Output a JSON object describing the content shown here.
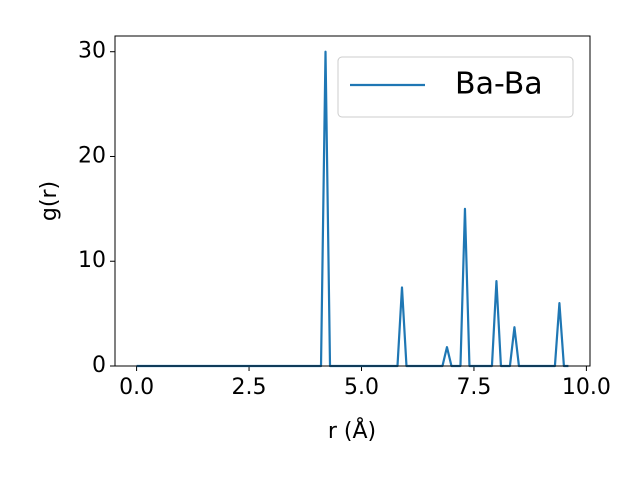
{
  "chart_data": {
    "type": "line",
    "x_label": "r (Å)",
    "y_label": "g(r)",
    "x": [
      0,
      4.1,
      4.2,
      4.3,
      5.8,
      5.9,
      6.0,
      6.8,
      6.9,
      7.0,
      7.2,
      7.3,
      7.4,
      7.9,
      8.0,
      8.1,
      8.3,
      8.4,
      8.5,
      9.3,
      9.4,
      9.5,
      9.6
    ],
    "series": [
      {
        "name": "Ba-Ba",
        "color": "#1f77b4",
        "values": [
          0,
          0,
          30,
          0,
          0,
          7.5,
          0,
          0,
          1.8,
          0,
          0,
          15,
          0,
          0,
          8.1,
          0,
          0,
          3.7,
          0,
          0,
          6,
          0,
          0
        ]
      }
    ],
    "xlim": [
      -0.48,
      10.08
    ],
    "ylim": [
      0,
      31.5
    ],
    "xticks": [
      {
        "value": 0,
        "label": "0.0"
      },
      2.5,
      {
        "value": 5,
        "label": "5.0"
      },
      7.5,
      {
        "value": 10,
        "label": "10.0"
      }
    ],
    "yticks": [
      0,
      10,
      20,
      30
    ],
    "legend": "upper right"
  }
}
